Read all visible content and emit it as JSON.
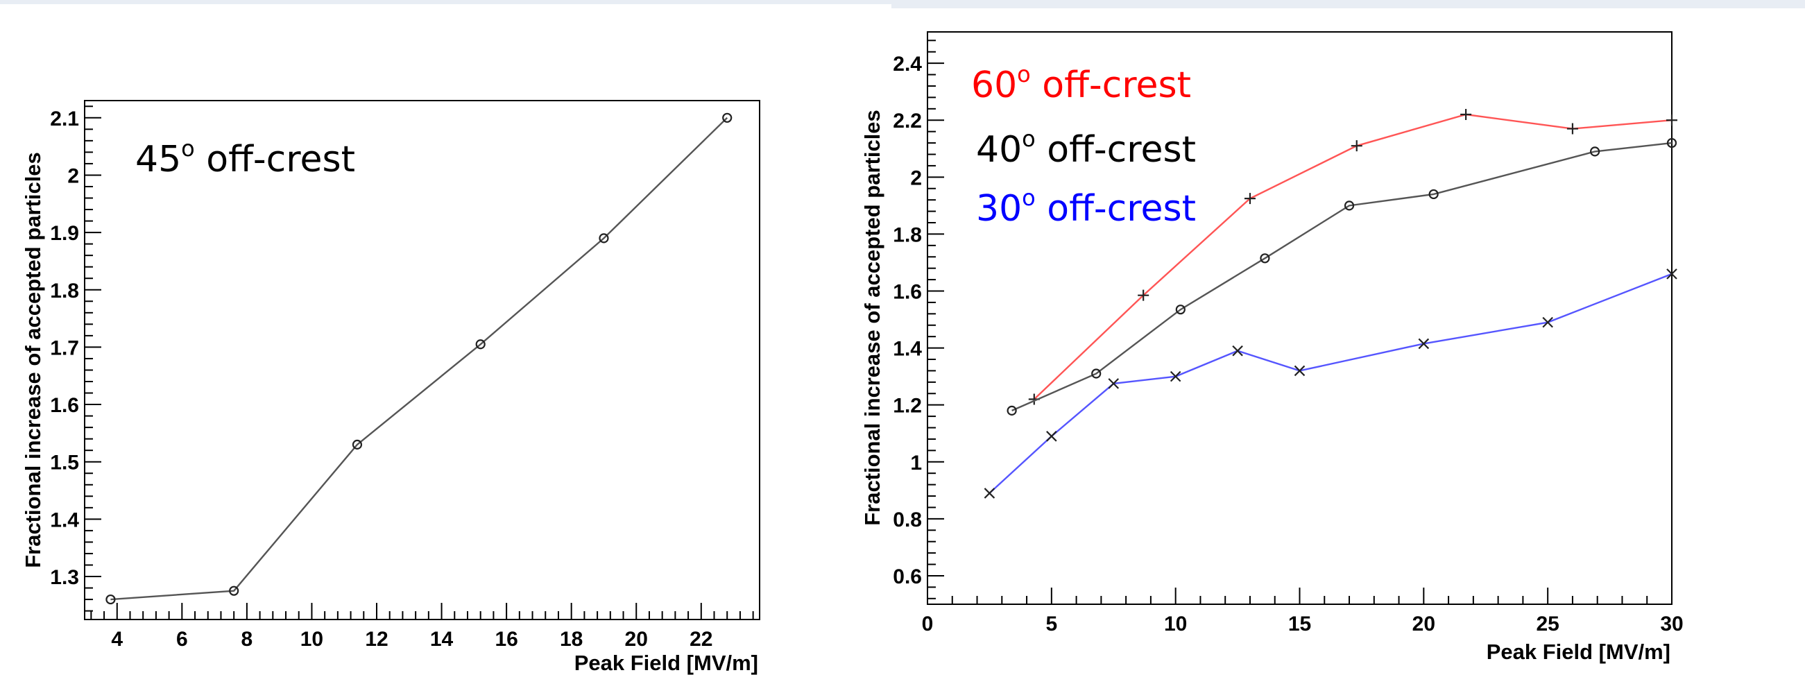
{
  "chart_data": [
    {
      "type": "line",
      "xlabel": "Peak Field [MV/m]",
      "ylabel": "Fractional increase of accepted particles",
      "xlim": [
        3,
        23.8
      ],
      "ylim": [
        1.225,
        2.13
      ],
      "xticks": [
        4,
        6,
        8,
        10,
        12,
        14,
        16,
        18,
        20,
        22
      ],
      "yticks": [
        1.3,
        1.4,
        1.5,
        1.6,
        1.7,
        1.8,
        1.9,
        2,
        2.1
      ],
      "xtick_labels": [
        "4",
        "6",
        "8",
        "10",
        "12",
        "14",
        "16",
        "18",
        "20",
        "22"
      ],
      "ytick_labels": [
        "1.3",
        "1.4",
        "1.5",
        "1.6",
        "1.7",
        "1.8",
        "1.9",
        "2",
        "2.1"
      ],
      "grid": false,
      "annotations": [
        {
          "text": "45",
          "sup": "o",
          "rest": " off-crest",
          "color": "#000000"
        }
      ],
      "series": [
        {
          "color": "#555555",
          "marker": "circle",
          "x": [
            3.8,
            7.6,
            11.4,
            15.2,
            19.0,
            22.8
          ],
          "y": [
            1.26,
            1.275,
            1.53,
            1.705,
            1.89,
            2.1
          ]
        }
      ]
    },
    {
      "type": "line",
      "xlabel": "Peak Field [MV/m]",
      "ylabel": "Fractional increase of accepted particles",
      "xlim": [
        0,
        30
      ],
      "ylim": [
        0.5,
        2.51
      ],
      "xticks": [
        0,
        5,
        10,
        15,
        20,
        25,
        30
      ],
      "yticks": [
        0.6,
        0.8,
        1,
        1.2,
        1.4,
        1.6,
        1.8,
        2,
        2.2,
        2.4
      ],
      "xtick_labels": [
        "0",
        "5",
        "10",
        "15",
        "20",
        "25",
        "30"
      ],
      "ytick_labels": [
        "0.6",
        "0.8",
        "1",
        "1.2",
        "1.4",
        "1.6",
        "1.8",
        "2",
        "2.2",
        "2.4"
      ],
      "grid": false,
      "annotations": [
        {
          "text": "60",
          "sup": "o",
          "rest": " off-crest",
          "color": "#ff0000"
        },
        {
          "text": "40",
          "sup": "o",
          "rest": " off-crest",
          "color": "#000000"
        },
        {
          "text": "30",
          "sup": "o",
          "rest": " off-crest",
          "color": "#0000ff"
        }
      ],
      "series": [
        {
          "color": "#ff5555",
          "marker": "plus",
          "x": [
            4.3,
            8.7,
            13,
            17.3,
            21.7,
            26,
            30
          ],
          "y": [
            1.22,
            1.585,
            1.925,
            2.11,
            2.22,
            2.17,
            2.2
          ]
        },
        {
          "color": "#555555",
          "marker": "circle",
          "x": [
            3.4,
            6.8,
            10.2,
            13.6,
            17,
            20.4,
            26.9,
            30
          ],
          "y": [
            1.18,
            1.31,
            1.535,
            1.715,
            1.9,
            1.94,
            2.09,
            2.12
          ]
        },
        {
          "color": "#5555ff",
          "marker": "cross",
          "x": [
            2.5,
            5,
            7.5,
            10,
            12.5,
            15,
            20,
            25,
            30
          ],
          "y": [
            0.89,
            1.09,
            1.275,
            1.3,
            1.39,
            1.32,
            1.415,
            1.49,
            1.66
          ]
        }
      ]
    }
  ]
}
